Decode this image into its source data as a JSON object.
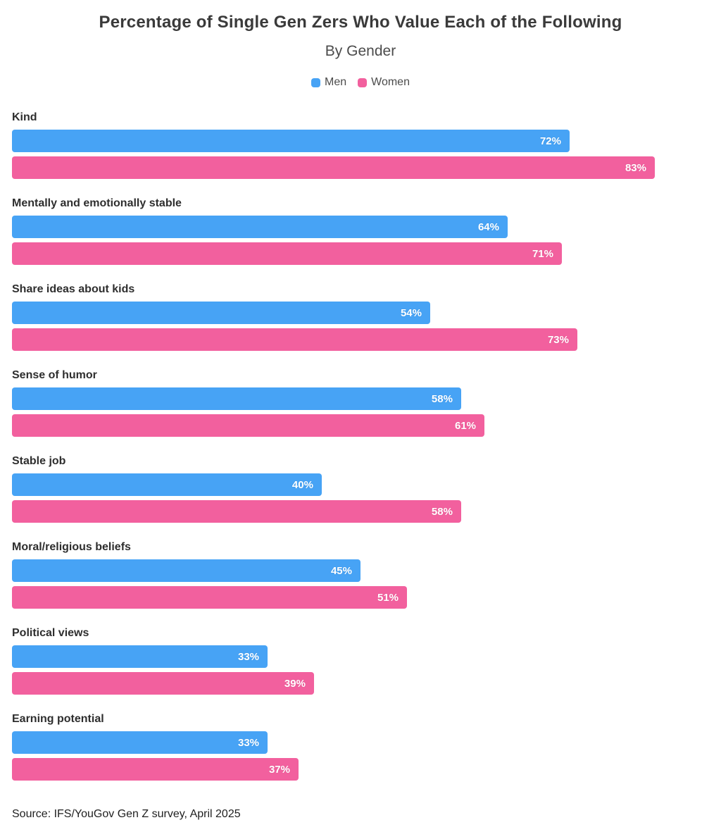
{
  "header": {
    "title": "Percentage of Single Gen Zers Who Value Each of the Following",
    "subtitle": "By Gender"
  },
  "legend": [
    {
      "label": "Men",
      "color": "#47a3f5"
    },
    {
      "label": "Women",
      "color": "#f2609e"
    }
  ],
  "chart_data": {
    "type": "bar",
    "orientation": "horizontal",
    "title": "Percentage of Single Gen Zers Who Value Each of the Following",
    "subtitle": "By Gender",
    "categories": [
      "Kind",
      "Mentally and emotionally stable",
      "Share ideas about kids",
      "Sense of humor",
      "Stable job",
      "Moral/religious beliefs",
      "Political views",
      "Earning potential"
    ],
    "series": [
      {
        "name": "Men",
        "color": "#47a3f5",
        "values": [
          72,
          64,
          54,
          58,
          40,
          45,
          33,
          33
        ]
      },
      {
        "name": "Women",
        "color": "#f2609e",
        "values": [
          83,
          71,
          73,
          61,
          58,
          51,
          39,
          37
        ]
      }
    ],
    "value_suffix": "%",
    "xlim": [
      0,
      90
    ],
    "grid": false,
    "legend_position": "top",
    "value_labels": "inside-end"
  },
  "footer": {
    "source": "Source: IFS/YouGov Gen Z survey, April 2025"
  }
}
